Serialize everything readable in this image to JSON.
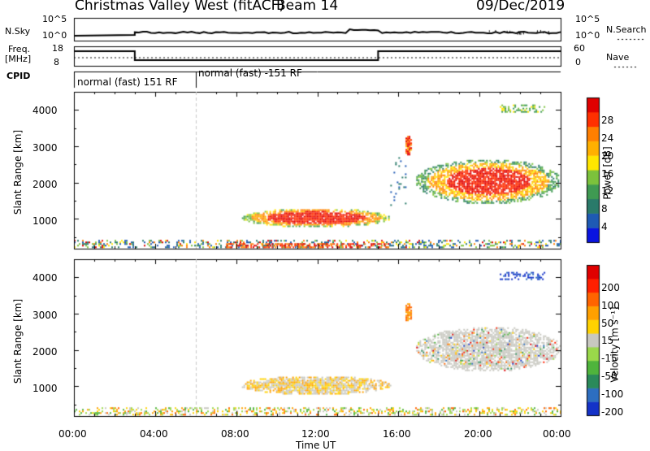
{
  "header": {
    "station": "Christmas Valley West (fitACF)",
    "beam": "Beam 14",
    "date": "09/Dec/2019"
  },
  "summary": {
    "nsky_label": "N.Sky",
    "nsky_ticks": [
      "10^5",
      "10^0"
    ],
    "nsearch_label": "N.Search",
    "nsearch_ticks": [
      "10^5",
      "10^0"
    ],
    "freq_label": "Freq.",
    "freq_unit": "[MHz]",
    "freq_ticks": [
      "18",
      "8"
    ],
    "nave_label": "Nave",
    "nave_ticks": [
      "60",
      "0"
    ],
    "cpid_label": "CPID",
    "cpid_segments": [
      {
        "label": "normal (fast) 151 RF",
        "start_h": 0,
        "end_h": 6
      },
      {
        "label": "normal (fast) -151 RF",
        "start_h": 6,
        "end_h": 24
      }
    ],
    "freq_steps": [
      {
        "start_h": 0,
        "end_h": 3,
        "mhz": 14
      },
      {
        "start_h": 3,
        "end_h": 15,
        "mhz": 10
      },
      {
        "start_h": 15,
        "end_h": 24,
        "mhz": 14
      }
    ]
  },
  "panels": {
    "ylabel": "Slant Range [km]",
    "yticks": [
      "4000",
      "3000",
      "2000",
      "1000"
    ],
    "xticks": [
      "00:00",
      "04:00",
      "08:00",
      "12:00",
      "16:00",
      "20:00",
      "00:00"
    ],
    "xlabel": "Time UT"
  },
  "power_scale": {
    "label": "Power [dB]",
    "ticks": [
      "28",
      "24",
      "20",
      "16",
      "12",
      "8",
      "4"
    ],
    "colors": [
      "#0a14e0",
      "#1e5ab4",
      "#2a7a6a",
      "#3f9a52",
      "#7cc23c",
      "#ffe600",
      "#ffb000",
      "#ff7f00",
      "#ff3000",
      "#e00000"
    ]
  },
  "velocity_scale": {
    "label": "Velocity [m s⁻¹]",
    "ticks": [
      "200",
      "100",
      "50",
      "15",
      "-15",
      "-50",
      "-100",
      "-200"
    ],
    "colors": [
      "#1432c8",
      "#2d6ec0",
      "#2a8a5a",
      "#4fb43c",
      "#9ad84a",
      "#c8c8c0",
      "#ffd200",
      "#ffa000",
      "#ff6400",
      "#ff2000",
      "#e00000"
    ]
  },
  "chart_data": {
    "type": "heatmap",
    "x_unit": "hours UT",
    "x_range": [
      0,
      24
    ],
    "y_range": [
      180,
      4500
    ],
    "regions": [
      {
        "name": "near-range ground echo band",
        "t": [
          0,
          24
        ],
        "range_km": [
          200,
          420
        ]
      },
      {
        "name": "daytime echo",
        "t": [
          8.2,
          15.7
        ],
        "range_km": [
          780,
          1320
        ]
      },
      {
        "name": "high-range spot",
        "t": [
          16.3,
          16.6
        ],
        "range_km": [
          2800,
          3350
        ]
      },
      {
        "name": "evening echo",
        "t": [
          16.5,
          24
        ],
        "range_km": [
          1500,
          2700
        ]
      },
      {
        "name": "far-range echo",
        "t": [
          21,
          23.2
        ],
        "range_km": [
          3950,
          4150
        ]
      }
    ]
  }
}
